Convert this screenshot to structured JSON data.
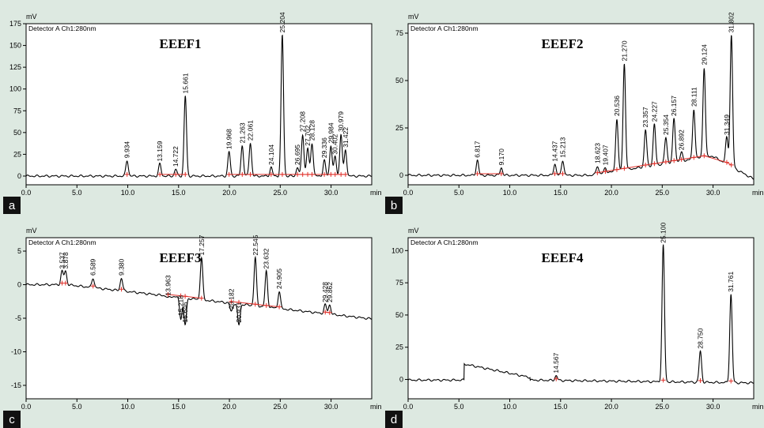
{
  "chart_data": [
    {
      "type": "line",
      "panel_letter": "a",
      "title": "EEEF1",
      "detector_label": "Detector A Ch1:280nm",
      "ylabel": "mV",
      "xlabel": "min",
      "xlim": [
        0,
        34
      ],
      "ylim": [
        -10,
        175
      ],
      "x_ticks": [
        0.0,
        5.0,
        10.0,
        15.0,
        20.0,
        25.0,
        30.0
      ],
      "x_tick_labels": [
        "0.0",
        "5.0",
        "10.0",
        "15.0",
        "20.0",
        "25.0",
        "30.0"
      ],
      "y_ticks": [
        0,
        25,
        50,
        75,
        100,
        125,
        150,
        175
      ],
      "y_tick_labels": [
        "0",
        "25",
        "50",
        "75",
        "100",
        "125",
        "150",
        "175"
      ],
      "peaks": [
        {
          "rt": 9.934,
          "label": "9.934",
          "height": 18
        },
        {
          "rt": 13.159,
          "label": "13.159",
          "height": 14
        },
        {
          "rt": 14.722,
          "label": "14.722",
          "height": 8
        },
        {
          "rt": 15.661,
          "label": "15.661",
          "height": 92
        },
        {
          "rt": 19.968,
          "label": "19.968",
          "height": 28
        },
        {
          "rt": 21.263,
          "label": "21.263",
          "height": 35
        },
        {
          "rt": 22.061,
          "label": "22.061",
          "height": 38
        },
        {
          "rt": 24.104,
          "label": "24.104",
          "height": 10
        },
        {
          "rt": 25.204,
          "label": "25.204",
          "height": 162
        },
        {
          "rt": 26.695,
          "label": "26.695",
          "height": 10
        },
        {
          "rt": 27.208,
          "label": "27.208",
          "height": 48
        },
        {
          "rt": 27.702,
          "label": "27.702",
          "height": 32
        },
        {
          "rt": 28.128,
          "label": "28.128",
          "height": 38
        },
        {
          "rt": 29.336,
          "label": "29.336",
          "height": 18
        },
        {
          "rt": 29.984,
          "label": "29.984",
          "height": 35
        },
        {
          "rt": 30.402,
          "label": "30.402",
          "height": 22
        },
        {
          "rt": 30.979,
          "label": "30.979",
          "height": 48
        },
        {
          "rt": 31.422,
          "label": "31.422",
          "height": 30
        }
      ]
    },
    {
      "type": "line",
      "panel_letter": "b",
      "title": "EEEF2",
      "detector_label": "Detector A Ch1:280nm",
      "ylabel": "mV",
      "xlabel": "min",
      "xlim": [
        0,
        34
      ],
      "ylim": [
        -5,
        80
      ],
      "x_ticks": [
        0.0,
        5.0,
        10.0,
        15.0,
        20.0,
        25.0,
        30.0
      ],
      "x_tick_labels": [
        "0.0",
        "5.0",
        "10.0",
        "15.0",
        "20.0",
        "25.0",
        "30.0"
      ],
      "y_ticks": [
        0,
        25,
        50,
        75
      ],
      "y_tick_labels": [
        "0",
        "25",
        "50",
        "75"
      ],
      "peaks": [
        {
          "rt": 6.817,
          "label": "6.817",
          "height": 8
        },
        {
          "rt": 9.17,
          "label": "9.170",
          "height": 4
        },
        {
          "rt": 14.437,
          "label": "14.437",
          "height": 6
        },
        {
          "rt": 15.213,
          "label": "15.213",
          "height": 8
        },
        {
          "rt": 18.623,
          "label": "18.623",
          "height": 5
        },
        {
          "rt": 19.407,
          "label": "19.407",
          "height": 4
        },
        {
          "rt": 20.536,
          "label": "20.536",
          "height": 30
        },
        {
          "rt": 21.27,
          "label": "21.270",
          "height": 59
        },
        {
          "rt": 23.357,
          "label": "23.357",
          "height": 24
        },
        {
          "rt": 24.227,
          "label": "24.227",
          "height": 27
        },
        {
          "rt": 25.354,
          "label": "25.354",
          "height": 20
        },
        {
          "rt": 26.157,
          "label": "26.157",
          "height": 30
        },
        {
          "rt": 26.892,
          "label": "26.892",
          "height": 12
        },
        {
          "rt": 28.111,
          "label": "28.111",
          "height": 35
        },
        {
          "rt": 29.124,
          "label": "29.124",
          "height": 57
        },
        {
          "rt": 31.349,
          "label": "31.349",
          "height": 20
        },
        {
          "rt": 31.802,
          "label": "31.802",
          "height": 74
        }
      ]
    },
    {
      "type": "line",
      "panel_letter": "c",
      "title": "EEEF3",
      "detector_label": "Detector A Ch1:280nm",
      "ylabel": "mV",
      "xlabel": "min",
      "xlim": [
        0,
        34
      ],
      "ylim": [
        -17,
        7
      ],
      "x_ticks": [
        0.0,
        5.0,
        10.0,
        15.0,
        20.0,
        25.0,
        30.0
      ],
      "x_tick_labels": [
        "0.0",
        "5.0",
        "10.0",
        "15.0",
        "20.0",
        "25.0",
        "30.0"
      ],
      "y_ticks": [
        -15,
        -10,
        -5,
        0,
        5
      ],
      "y_tick_labels": [
        "-15",
        "-10",
        "-5",
        "0",
        "5"
      ],
      "peaks": [
        {
          "rt": 3.537,
          "label": "3.537",
          "height": 2
        },
        {
          "rt": 3.878,
          "label": "3.878",
          "height": 2
        },
        {
          "rt": 6.589,
          "label": "6.589",
          "height": 1
        },
        {
          "rt": 9.38,
          "label": "9.380",
          "height": 1
        },
        {
          "rt": 13.963,
          "label": "13.963",
          "height": -2
        },
        {
          "rt": 15.218,
          "label": "15.218",
          "height": -5
        },
        {
          "rt": 15.646,
          "label": "15.646",
          "height": -6
        },
        {
          "rt": 17.257,
          "label": "17.257",
          "height": 4
        },
        {
          "rt": 20.182,
          "label": "20.182",
          "height": -4
        },
        {
          "rt": 20.931,
          "label": "20.931",
          "height": -6
        },
        {
          "rt": 22.545,
          "label": "22.545",
          "height": 4
        },
        {
          "rt": 23.632,
          "label": "23.632",
          "height": 2
        },
        {
          "rt": 24.905,
          "label": "24.905",
          "height": -1
        },
        {
          "rt": 29.428,
          "label": "29.428",
          "height": -3
        },
        {
          "rt": 29.862,
          "label": "29.862",
          "height": -3
        }
      ]
    },
    {
      "type": "line",
      "panel_letter": "d",
      "title": "EEEF4",
      "detector_label": "Detector A Ch1:280nm",
      "ylabel": "mV",
      "xlabel": "min",
      "xlim": [
        0,
        34
      ],
      "ylim": [
        -15,
        110
      ],
      "x_ticks": [
        0.0,
        5.0,
        10.0,
        15.0,
        20.0,
        25.0,
        30.0
      ],
      "x_tick_labels": [
        "0.0",
        "5.0",
        "10.0",
        "15.0",
        "20.0",
        "25.0",
        "30.0"
      ],
      "y_ticks": [
        0,
        25,
        50,
        75,
        100
      ],
      "y_tick_labels": [
        "0",
        "25",
        "50",
        "75",
        "100"
      ],
      "peaks": [
        {
          "rt": 14.567,
          "label": "14.567",
          "height": 3
        },
        {
          "rt": 25.1,
          "label": "25.100",
          "height": 104
        },
        {
          "rt": 28.75,
          "label": "28.750",
          "height": 22
        },
        {
          "rt": 31.761,
          "label": "31.761",
          "height": 66
        }
      ]
    }
  ]
}
